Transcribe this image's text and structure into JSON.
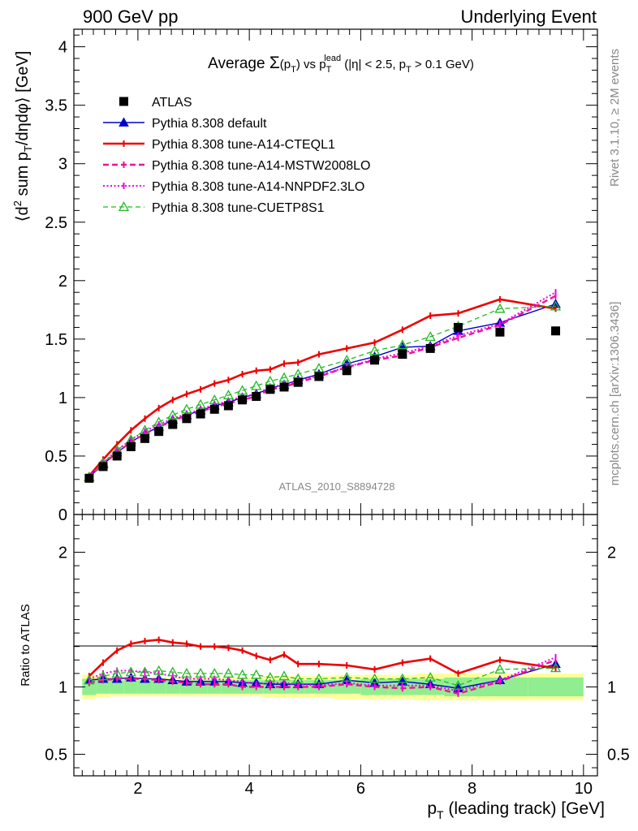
{
  "header": {
    "left": "900 GeV pp",
    "right": "Underlying Event"
  },
  "side_labels": {
    "rivet": "Rivet 3.1.10, ≥ 2M events",
    "mcplots": "mcplots.cern.ch [arXiv:1306.3436]"
  },
  "watermark": "ATLAS_2010_S8894728",
  "chart_data": [
    {
      "type": "line",
      "title": "Average Σ(p_T) vs p_T^lead (|η| < 2.5, p_T > 0.1 GeV)",
      "title_parts": {
        "t1": "Average ",
        "sigma": "Σ",
        "t2": "(p",
        "t3": ")  vs  p",
        "sup": "lead",
        "t4": " (|η| < 2.5, p",
        "t5": " > 0.1 GeV)",
        "sub": "T"
      },
      "ylabel": "⟨d² sum p_T/dηdφ⟩ [GeV]",
      "ylabel_parts": {
        "a": "⟨d",
        "sup": "2",
        "b": " sum p",
        "sub": "T",
        "c": "/dηdφ⟩ [GeV]"
      },
      "xlim": [
        0.85,
        10.25
      ],
      "ylim": [
        0,
        4.15
      ],
      "yticks": [
        0,
        0.5,
        1,
        1.5,
        2,
        2.5,
        3,
        3.5,
        4
      ],
      "ytick_labels": [
        "0",
        "0.5",
        "1",
        "1.5",
        "2",
        "2.5",
        "3",
        "3.5",
        "4"
      ],
      "legend_position": "top-left",
      "x": [
        1.125,
        1.375,
        1.625,
        1.875,
        2.125,
        2.375,
        2.625,
        2.875,
        3.125,
        3.375,
        3.625,
        3.875,
        4.125,
        4.375,
        4.625,
        4.875,
        5.25,
        5.75,
        6.25,
        6.75,
        7.25,
        7.75,
        8.5,
        9.5
      ],
      "series": [
        {
          "name": "ATLAS",
          "style": "data",
          "color": "#000000",
          "values": [
            0.31,
            0.41,
            0.5,
            0.58,
            0.65,
            0.71,
            0.77,
            0.82,
            0.86,
            0.9,
            0.93,
            0.98,
            1.01,
            1.07,
            1.09,
            1.13,
            1.18,
            1.23,
            1.32,
            1.37,
            1.42,
            1.6,
            1.56,
            1.57
          ]
        },
        {
          "name": "Pythia 8.308 default",
          "style": "solid-triangle",
          "color": "#0000cc",
          "values": [
            0.32,
            0.43,
            0.53,
            0.62,
            0.69,
            0.75,
            0.81,
            0.85,
            0.89,
            0.93,
            0.96,
            1.0,
            1.03,
            1.08,
            1.11,
            1.15,
            1.2,
            1.29,
            1.35,
            1.43,
            1.44,
            1.57,
            1.64,
            1.8
          ]
        },
        {
          "name": "Pythia 8.308 tune-A14-CTEQL1",
          "style": "solid-thick",
          "color": "#ee0000",
          "values": [
            0.33,
            0.47,
            0.6,
            0.72,
            0.82,
            0.91,
            0.98,
            1.03,
            1.07,
            1.12,
            1.15,
            1.2,
            1.23,
            1.24,
            1.29,
            1.3,
            1.37,
            1.42,
            1.47,
            1.58,
            1.7,
            1.72,
            1.84,
            1.76
          ]
        },
        {
          "name": "Pythia 8.308 tune-A14-MSTW2008LO",
          "style": "dashed",
          "color": "#ee1493",
          "values": [
            0.32,
            0.43,
            0.53,
            0.62,
            0.69,
            0.75,
            0.8,
            0.85,
            0.88,
            0.92,
            0.95,
            0.98,
            1.01,
            1.07,
            1.09,
            1.13,
            1.18,
            1.26,
            1.32,
            1.36,
            1.43,
            1.51,
            1.62,
            1.87
          ]
        },
        {
          "name": "Pythia 8.308 tune-A14-NNPDF2.3LO",
          "style": "dotted",
          "color": "#ee00ee",
          "values": [
            0.33,
            0.44,
            0.55,
            0.64,
            0.71,
            0.77,
            0.82,
            0.86,
            0.9,
            0.94,
            0.97,
            1.01,
            1.03,
            1.09,
            1.11,
            1.14,
            1.19,
            1.26,
            1.33,
            1.38,
            1.44,
            1.53,
            1.63,
            1.9
          ]
        },
        {
          "name": "Pythia 8.308 tune-CUETP8S1",
          "style": "dashed-open-triangle",
          "color": "#22bb22",
          "values": [
            0.32,
            0.44,
            0.55,
            0.64,
            0.72,
            0.79,
            0.85,
            0.9,
            0.94,
            0.98,
            1.02,
            1.06,
            1.1,
            1.14,
            1.17,
            1.2,
            1.25,
            1.32,
            1.4,
            1.45,
            1.52,
            1.61,
            1.76,
            1.78
          ]
        }
      ]
    },
    {
      "type": "line",
      "ylabel": "Ratio to ATLAS",
      "xlabel": "p_T (leading track) [GeV]",
      "xlabel_parts": {
        "a": "p",
        "sub": "T",
        "b": " (leading track) [GeV]"
      },
      "xlim": [
        0.85,
        10.25
      ],
      "ylim": [
        0.34,
        2.28
      ],
      "xticks": [
        2,
        4,
        6,
        8,
        10
      ],
      "xtick_labels": [
        "2",
        "4",
        "6",
        "8",
        "10"
      ],
      "yticks": [
        0.5,
        1,
        2
      ],
      "ytick_labels": [
        "0.5",
        "1",
        "2"
      ],
      "band_inner": [
        0.06,
        0.05,
        0.05,
        0.05,
        0.05,
        0.05,
        0.05,
        0.05,
        0.05,
        0.05,
        0.05,
        0.05,
        0.05,
        0.05,
        0.05,
        0.05,
        0.05,
        0.05,
        0.06,
        0.06,
        0.06,
        0.07,
        0.07,
        0.07
      ],
      "band_outer": [
        0.09,
        0.08,
        0.07,
        0.07,
        0.07,
        0.07,
        0.07,
        0.07,
        0.07,
        0.07,
        0.07,
        0.07,
        0.07,
        0.08,
        0.08,
        0.08,
        0.08,
        0.09,
        0.09,
        0.09,
        0.1,
        0.1,
        0.1,
        0.1
      ],
      "band_colors": {
        "inner": "#90ee90",
        "outer": "#ffff99"
      },
      "series_ratios": [
        [
          1.05,
          1.06,
          1.06,
          1.07,
          1.06,
          1.06,
          1.05,
          1.04,
          1.04,
          1.04,
          1.04,
          1.03,
          1.03,
          1.02,
          1.02,
          1.02,
          1.02,
          1.05,
          1.03,
          1.04,
          1.02,
          0.99,
          1.05,
          1.17
        ],
        [
          1.08,
          1.18,
          1.27,
          1.32,
          1.34,
          1.35,
          1.33,
          1.32,
          1.3,
          1.3,
          1.29,
          1.27,
          1.23,
          1.2,
          1.24,
          1.17,
          1.17,
          1.16,
          1.13,
          1.18,
          1.21,
          1.1,
          1.2,
          1.14
        ],
        [
          1.03,
          1.05,
          1.06,
          1.06,
          1.06,
          1.05,
          1.04,
          1.03,
          1.02,
          1.02,
          1.02,
          1.0,
          1.0,
          1.0,
          1.0,
          1.0,
          1.0,
          1.02,
          1.0,
          0.99,
          1.0,
          0.95,
          1.04,
          1.2
        ],
        [
          1.06,
          1.1,
          1.12,
          1.12,
          1.11,
          1.1,
          1.08,
          1.06,
          1.06,
          1.06,
          1.05,
          1.04,
          1.02,
          1.03,
          1.03,
          1.02,
          1.01,
          1.03,
          1.01,
          1.01,
          1.01,
          0.97,
          1.05,
          1.22
        ],
        [
          1.05,
          1.08,
          1.1,
          1.11,
          1.11,
          1.12,
          1.11,
          1.1,
          1.1,
          1.1,
          1.1,
          1.09,
          1.09,
          1.07,
          1.08,
          1.06,
          1.06,
          1.07,
          1.06,
          1.06,
          1.07,
          1.01,
          1.13,
          1.14
        ]
      ]
    }
  ]
}
